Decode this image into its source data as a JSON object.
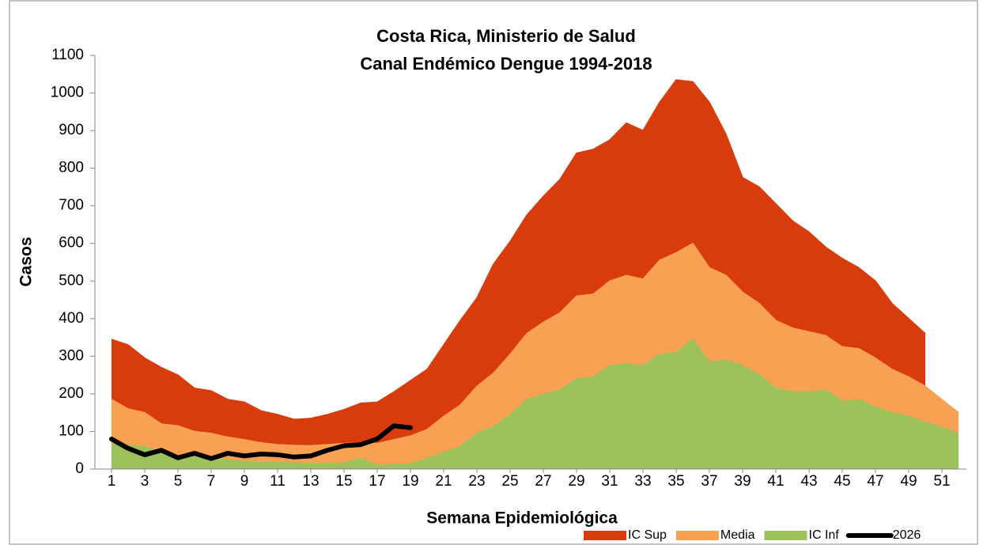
{
  "chart_data": {
    "type": "area",
    "title": [
      "Costa Rica, Ministerio de Salud",
      "Canal Endémico Dengue 1994-2018"
    ],
    "xlabel": "Semana Epidemiológica",
    "ylabel": "Casos",
    "x": [
      1,
      2,
      3,
      4,
      5,
      6,
      7,
      8,
      9,
      10,
      11,
      12,
      13,
      14,
      15,
      16,
      17,
      18,
      19,
      20,
      21,
      22,
      23,
      24,
      25,
      26,
      27,
      28,
      29,
      30,
      31,
      32,
      33,
      34,
      35,
      36,
      37,
      38,
      39,
      40,
      41,
      42,
      43,
      44,
      45,
      46,
      47,
      48,
      49,
      50,
      51,
      52
    ],
    "xlim": [
      1,
      52
    ],
    "xticks": [
      1,
      3,
      5,
      7,
      9,
      11,
      13,
      15,
      17,
      19,
      21,
      23,
      25,
      27,
      29,
      31,
      33,
      35,
      37,
      39,
      41,
      43,
      45,
      47,
      49,
      51
    ],
    "ylim": [
      0,
      1100
    ],
    "yticks": [
      0,
      100,
      200,
      300,
      400,
      500,
      600,
      700,
      800,
      900,
      1000,
      1100
    ],
    "series": [
      {
        "name": "IC Sup",
        "color": "#d93c0c",
        "kind": "area",
        "values": [
          345,
          330,
          295,
          270,
          250,
          215,
          208,
          185,
          178,
          155,
          145,
          132,
          135,
          145,
          158,
          175,
          178,
          205,
          235,
          265,
          330,
          395,
          455,
          545,
          605,
          675,
          725,
          770,
          840,
          850,
          875,
          920,
          900,
          975,
          1035,
          1030,
          975,
          890,
          775,
          750,
          705,
          660,
          630,
          590,
          560,
          535,
          500,
          440,
          400,
          360,
          null,
          null
        ]
      },
      {
        "name": "Media",
        "color": "#f9a152",
        "kind": "area",
        "values": [
          185,
          160,
          150,
          120,
          115,
          100,
          95,
          85,
          78,
          70,
          65,
          63,
          62,
          65,
          68,
          70,
          68,
          78,
          88,
          105,
          140,
          170,
          220,
          255,
          305,
          360,
          390,
          415,
          460,
          465,
          500,
          515,
          505,
          555,
          575,
          600,
          535,
          515,
          470,
          440,
          395,
          375,
          365,
          355,
          325,
          320,
          295,
          265,
          245,
          220,
          185,
          150
        ]
      },
      {
        "name": "IC Inf",
        "color": "#9dc25c",
        "kind": "area",
        "values": [
          65,
          62,
          60,
          45,
          35,
          35,
          28,
          25,
          20,
          18,
          17,
          16,
          15,
          15,
          16,
          28,
          10,
          12,
          14,
          28,
          45,
          60,
          95,
          112,
          145,
          185,
          198,
          210,
          240,
          245,
          275,
          280,
          275,
          305,
          310,
          345,
          285,
          290,
          275,
          250,
          215,
          205,
          205,
          210,
          180,
          185,
          165,
          150,
          140,
          125,
          110,
          95
        ]
      },
      {
        "name": "2026",
        "color": "#000000",
        "kind": "line",
        "values": [
          80,
          55,
          38,
          50,
          30,
          42,
          28,
          42,
          35,
          40,
          38,
          32,
          35,
          50,
          62,
          65,
          80,
          115,
          110,
          null,
          null,
          null,
          null,
          null,
          null,
          null,
          null,
          null,
          null,
          null,
          null,
          null,
          null,
          null,
          null,
          null,
          null,
          null,
          null,
          null,
          null,
          null,
          null,
          null,
          null,
          null,
          null,
          null,
          null,
          null,
          null,
          null
        ]
      }
    ]
  }
}
